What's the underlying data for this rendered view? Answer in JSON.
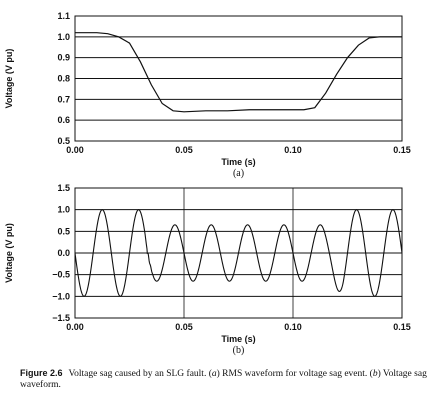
{
  "chart_data": [
    {
      "type": "line",
      "ylabel": "Voltage (V pu)",
      "xlabel": "Time (s)",
      "subplot_label": "(a)",
      "xlim": [
        0,
        0.15
      ],
      "ylim": [
        0.5,
        1.1
      ],
      "xticks": [
        "0.00",
        "0.05",
        "0.10",
        "0.15"
      ],
      "yticks": [
        "0.5",
        "0.6",
        "0.7",
        "0.8",
        "0.9",
        "1.0",
        "1.1"
      ],
      "grid": "horizontal",
      "series": [
        {
          "x": [
            0.0,
            0.005,
            0.01,
            0.015,
            0.02,
            0.025,
            0.03,
            0.035,
            0.04,
            0.045,
            0.05,
            0.06,
            0.07,
            0.08,
            0.09,
            0.1,
            0.105,
            0.11,
            0.115,
            0.12,
            0.125,
            0.13,
            0.135,
            0.14,
            0.145,
            0.15
          ],
          "y": [
            1.02,
            1.02,
            1.02,
            1.015,
            1.0,
            0.97,
            0.88,
            0.77,
            0.68,
            0.645,
            0.64,
            0.645,
            0.645,
            0.65,
            0.65,
            0.65,
            0.65,
            0.66,
            0.73,
            0.82,
            0.9,
            0.96,
            0.995,
            1.0,
            1.0,
            1.0
          ]
        }
      ]
    },
    {
      "type": "line",
      "ylabel": "Voltage (V pu)",
      "xlabel": "Time (s)",
      "subplot_label": "(b)",
      "xlim": [
        0,
        0.15
      ],
      "ylim": [
        -1.5,
        1.5
      ],
      "xticks": [
        "0.00",
        "0.05",
        "0.10",
        "0.15"
      ],
      "yticks": [
        "−1.5",
        "−1.0",
        "−0.5",
        "0.0",
        "0.5",
        "1.0",
        "1.5"
      ],
      "grid": "horizontal and vertical at 0.05, 0.10",
      "series": [
        {
          "description_values": "sinusoid, 60 Hz",
          "frequency_hz": 60,
          "prefault_amplitude": 1.0,
          "sag_amplitude": 0.65,
          "sag_start": 0.033,
          "sag_end": 0.117,
          "min_y": -1.0,
          "max_y": 1.0
        }
      ]
    }
  ],
  "caption": {
    "figure_label": "Figure 2.6",
    "text_1": "Voltage sag caused by an SLG fault. (",
    "a_label": "a",
    "text_2": ") RMS waveform for voltage sag event. (",
    "b_label": "b",
    "text_3": ") Voltage sag waveform."
  }
}
